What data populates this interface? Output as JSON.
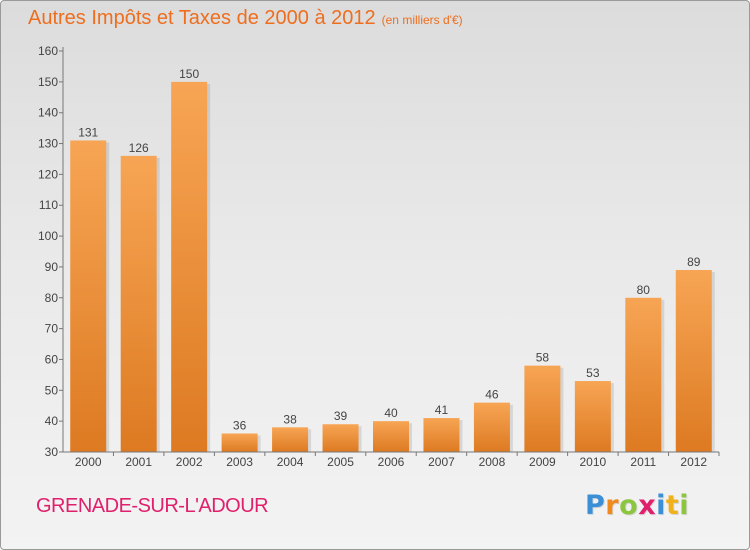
{
  "page": {
    "title": "Autres Impôts et Taxes de 2000 à 2012",
    "unit": "(en milliers d'€)",
    "place": "GRENADE-SUR-L'ADOUR",
    "logo_letters": [
      "P",
      "r",
      "o",
      "x",
      "i",
      "t",
      "i"
    ],
    "logo_colors": [
      "#3a8fd6",
      "#f08a1c",
      "#8cc63f",
      "#e0206c",
      "#3a8fd6",
      "#f0b21c",
      "#8cc63f"
    ]
  },
  "colors": {
    "title": "#ee6e1e",
    "place": "#e0206c",
    "bar_light": "#f7a554",
    "bar_dark": "#dd7a22"
  },
  "chart_data": {
    "type": "bar",
    "title": "Autres Impôts et Taxes de 2000 à 2012",
    "subtitle": "(en milliers d'€)",
    "xlabel": "",
    "ylabel": "",
    "categories": [
      "2000",
      "2001",
      "2002",
      "2003",
      "2004",
      "2005",
      "2006",
      "2007",
      "2008",
      "2009",
      "2010",
      "2011",
      "2012"
    ],
    "values": [
      131,
      126,
      150,
      36,
      38,
      39,
      40,
      41,
      46,
      58,
      53,
      80,
      89
    ],
    "ylim": [
      30,
      160
    ],
    "yticks": [
      30,
      40,
      50,
      60,
      70,
      80,
      90,
      100,
      110,
      120,
      130,
      140,
      150,
      160
    ],
    "data_labels": true,
    "grid": false,
    "legend": "none"
  }
}
